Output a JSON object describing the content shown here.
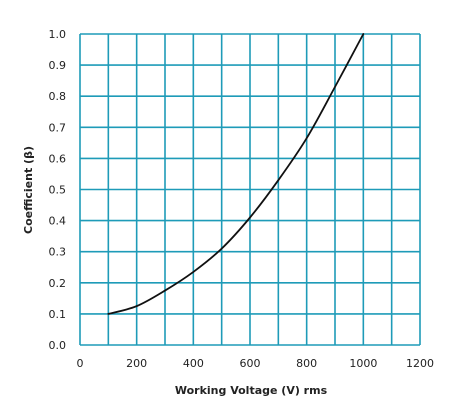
{
  "chart_data": {
    "type": "line",
    "title": "",
    "xlabel": "Working Voltage (V) rms",
    "ylabel": "Coefficient (β)",
    "xlim": [
      0,
      1200
    ],
    "ylim": [
      0.0,
      1.0
    ],
    "x_ticks": [
      0,
      200,
      400,
      600,
      800,
      1000,
      1200
    ],
    "x_tick_labels": [
      "0",
      "200",
      "400",
      "600",
      "800",
      "1000",
      "1200"
    ],
    "y_ticks": [
      0.0,
      0.1,
      0.2,
      0.3,
      0.4,
      0.5,
      0.6,
      0.7,
      0.8,
      0.9,
      1.0
    ],
    "y_tick_labels": [
      "0.0",
      "0.1",
      "0.2",
      "0.3",
      "0.4",
      "0.5",
      "0.6",
      "0.7",
      "0.8",
      "0.9",
      "1.0"
    ],
    "grid": true,
    "grid_color": "#1e9bb8",
    "line_color": "#111111",
    "series": [
      {
        "x": [
          100,
          200,
          300,
          400,
          500,
          600,
          700,
          800,
          900,
          1000
        ],
        "y": [
          0.1,
          0.125,
          0.175,
          0.235,
          0.31,
          0.41,
          0.53,
          0.665,
          0.83,
          1.0
        ]
      }
    ]
  }
}
